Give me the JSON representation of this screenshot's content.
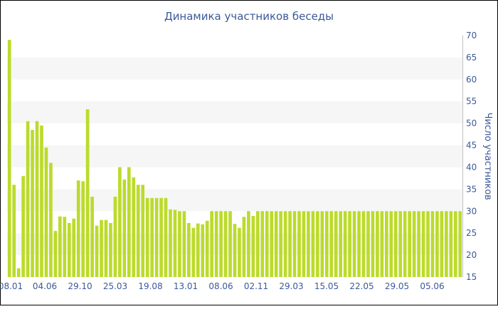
{
  "chart_data": {
    "type": "bar",
    "title": "Динамика участников беседы",
    "xlabel": "",
    "ylabel": "Число участников",
    "ylim": [
      15,
      70
    ],
    "yticks": [
      15,
      20,
      25,
      30,
      35,
      40,
      45,
      50,
      55,
      60,
      65,
      70
    ],
    "y_axis_side": "right",
    "grid": "alternating horizontal bands",
    "x_tick_labels": [
      "08.01",
      "04.06",
      "29.10",
      "25.03",
      "19.08",
      "13.01",
      "08.06",
      "02.11",
      "29.03",
      "15.05",
      "22.05",
      "29.05",
      "05.06"
    ],
    "values": [
      69,
      36,
      17,
      38,
      50.5,
      48.5,
      50.5,
      49.5,
      44.5,
      41,
      25.5,
      28.8,
      28.7,
      27.3,
      28.3,
      37,
      36.8,
      53.2,
      33.3,
      26.7,
      28,
      28,
      27.3,
      33.3,
      40,
      37.2,
      40,
      37.7,
      36,
      36,
      33,
      33,
      33,
      33,
      33,
      30.4,
      30.3,
      30,
      30,
      27.3,
      26.2,
      27.2,
      27,
      27.8,
      30,
      30,
      30,
      30,
      30,
      27.1,
      26.2,
      28.7,
      30,
      28.9,
      30,
      30,
      30,
      30,
      30,
      30,
      30,
      30,
      30,
      30,
      30,
      30,
      30,
      30,
      30,
      30,
      30,
      30,
      30,
      30,
      30,
      30,
      30,
      30,
      30,
      30,
      30,
      30,
      30,
      30,
      30,
      30,
      30,
      30,
      30,
      30,
      30,
      30,
      30,
      30,
      30,
      30,
      30,
      30,
      30
    ],
    "colors": {
      "bar": "#bbdb2b",
      "band": "#f6f6f6",
      "axis_text": "#3b5998",
      "border": "#000000"
    }
  }
}
